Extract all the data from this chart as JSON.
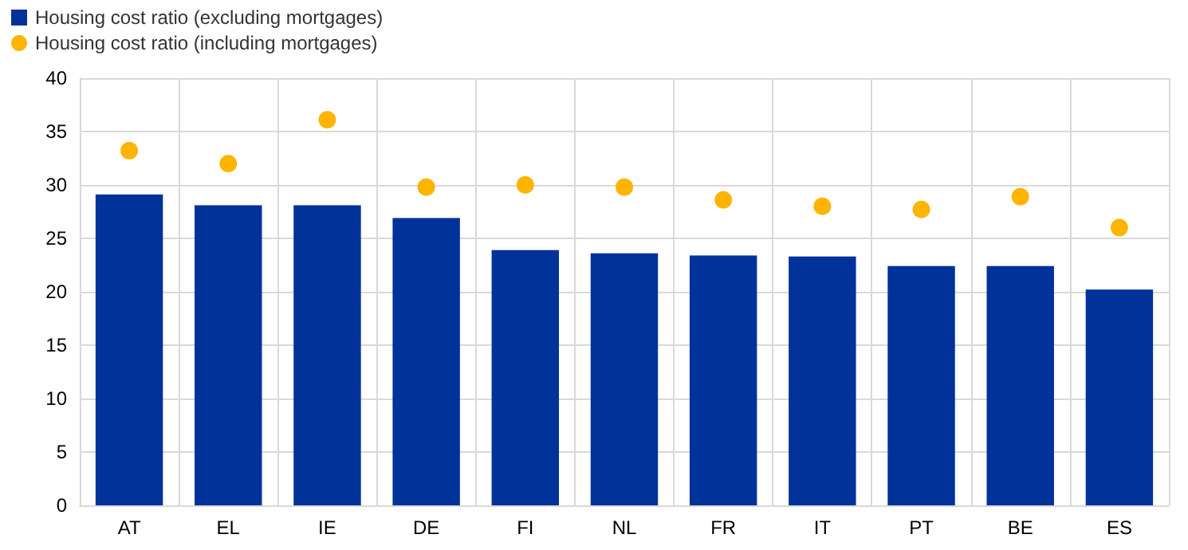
{
  "chart_data": {
    "type": "bar",
    "categories": [
      "AT",
      "EL",
      "IE",
      "DE",
      "FI",
      "NL",
      "FR",
      "IT",
      "PT",
      "BE",
      "ES"
    ],
    "series": [
      {
        "name": "Housing cost ratio (excluding mortgages)",
        "color": "#003299",
        "values": [
          29.1,
          28.1,
          28.1,
          26.9,
          23.9,
          23.6,
          23.4,
          23.3,
          22.4,
          22.4,
          20.2
        ]
      },
      {
        "name": "Housing cost ratio (including mortgages)",
        "type": "scatter",
        "color": "#ffb400",
        "values": [
          33.2,
          32.0,
          36.1,
          29.8,
          30.0,
          29.8,
          28.6,
          28.0,
          27.7,
          28.9,
          26.0
        ]
      }
    ],
    "ylim": [
      0,
      40
    ],
    "yticks": [
      0,
      5,
      10,
      15,
      20,
      25,
      30,
      35,
      40
    ],
    "grid": true,
    "legend": "top left",
    "marker": "circle"
  }
}
